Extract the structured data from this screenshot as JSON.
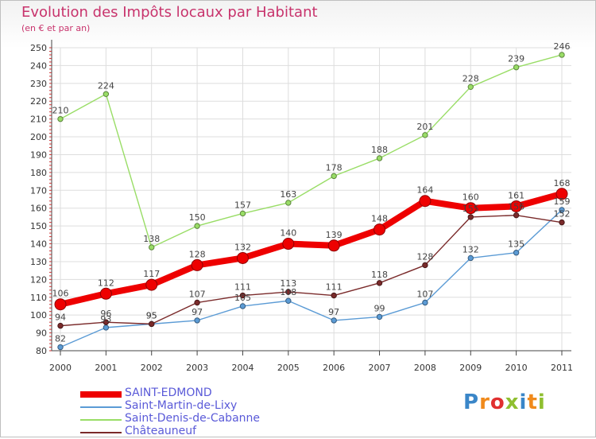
{
  "title": "Evolution des Impôts locaux par Habitant",
  "subtitle": "(en € et par an)",
  "logo_letters": [
    {
      "ch": "P",
      "color": "#3a86c8"
    },
    {
      "ch": "r",
      "color": "#f08a1c"
    },
    {
      "ch": "o",
      "color": "#e03030"
    },
    {
      "ch": "x",
      "color": "#8fbf30"
    },
    {
      "ch": "i",
      "color": "#3a86c8"
    },
    {
      "ch": "t",
      "color": "#f08a1c"
    },
    {
      "ch": "i",
      "color": "#8fbf30"
    }
  ],
  "chart_data": {
    "type": "line",
    "title": "Evolution des Impôts locaux par Habitant",
    "subtitle": "(en € et par an)",
    "x": [
      "2000",
      "2001",
      "2002",
      "2003",
      "2004",
      "2005",
      "2006",
      "2007",
      "2008",
      "2009",
      "2010",
      "2011"
    ],
    "ylim": [
      80,
      250
    ],
    "yticks": [
      80,
      90,
      100,
      110,
      120,
      130,
      140,
      150,
      160,
      170,
      180,
      190,
      200,
      210,
      220,
      230,
      240,
      250
    ],
    "grid": true,
    "legend_position": "bottom-left",
    "series": [
      {
        "name": "Saint-Martin-de-Lixy",
        "color": "#5b9bd5",
        "values": [
          82,
          93,
          95,
          97,
          105,
          108,
          97,
          99,
          107,
          132,
          135,
          159
        ],
        "label_pos": "above"
      },
      {
        "name": "Saint-Denis-de-Cabanne",
        "color": "#99dd66",
        "values": [
          210,
          224,
          138,
          150,
          157,
          163,
          178,
          188,
          201,
          228,
          239,
          246
        ],
        "label_pos": "above"
      },
      {
        "name": "Châteauneuf",
        "color": "#7a2a2a",
        "values": [
          94,
          96,
          95,
          107,
          111,
          113,
          111,
          118,
          128,
          155,
          156,
          152
        ],
        "label_pos": "above"
      },
      {
        "name": "SAINT-EDMOND",
        "color": "#ee0000",
        "values": [
          106,
          112,
          117,
          128,
          132,
          140,
          139,
          148,
          164,
          160,
          161,
          168
        ],
        "label_pos": "above",
        "thick": true
      }
    ]
  },
  "legend": [
    {
      "name": "SAINT-EDMOND",
      "color": "#ee0000",
      "thick": true
    },
    {
      "name": "Saint-Martin-de-Lixy",
      "color": "#5b9bd5",
      "thick": false
    },
    {
      "name": "Saint-Denis-de-Cabanne",
      "color": "#99dd66",
      "thick": false
    },
    {
      "name": "Châteauneuf",
      "color": "#7a2a2a",
      "thick": false
    }
  ]
}
